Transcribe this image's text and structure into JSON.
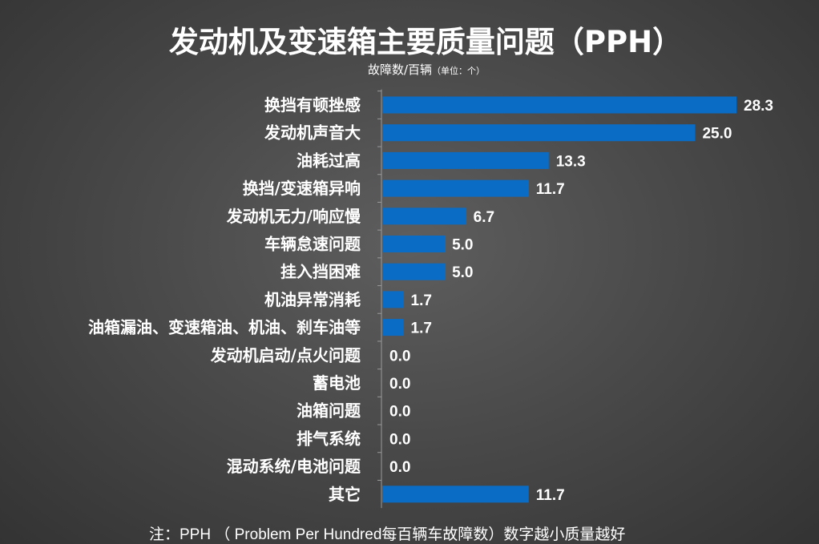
{
  "chart_data": {
    "type": "bar",
    "orientation": "horizontal",
    "title": "发动机及变速箱主要质量问题（PPH）",
    "subtitle": "故障数/百辆",
    "subtitle_unit": "（单位：个）",
    "categories": [
      "换挡有顿挫感",
      "发动机声音大",
      "油耗过高",
      "换挡/变速箱异响",
      "发动机无力/响应慢",
      "车辆怠速问题",
      "挂入挡困难",
      "机油异常消耗",
      "油箱漏油、变速箱油、机油、刹车油等",
      "发动机启动/点火问题",
      "蓄电池",
      "油箱问题",
      "排气系统",
      "混动系统/电池问题",
      "其它"
    ],
    "values": [
      28.3,
      25.0,
      13.3,
      11.7,
      6.7,
      5.0,
      5.0,
      1.7,
      1.7,
      0.0,
      0.0,
      0.0,
      0.0,
      0.0,
      11.7
    ],
    "value_labels": [
      "28.3",
      "25.0",
      "13.3",
      "11.7",
      "6.7",
      "5.0",
      "5.0",
      "1.7",
      "1.7",
      "0.0",
      "0.0",
      "0.0",
      "0.0",
      "0.0",
      "11.7"
    ],
    "xlim": [
      0,
      28.3
    ],
    "bar_color": "#0b6cc5",
    "grid": false,
    "legend": "none"
  },
  "footnote": "注：PPH （ Problem Per Hundred每百辆车故障数）数字越小质量越好",
  "colors": {
    "background": "#4a4a4a",
    "text": "#ffffff",
    "axis": "#9a9a9a"
  }
}
